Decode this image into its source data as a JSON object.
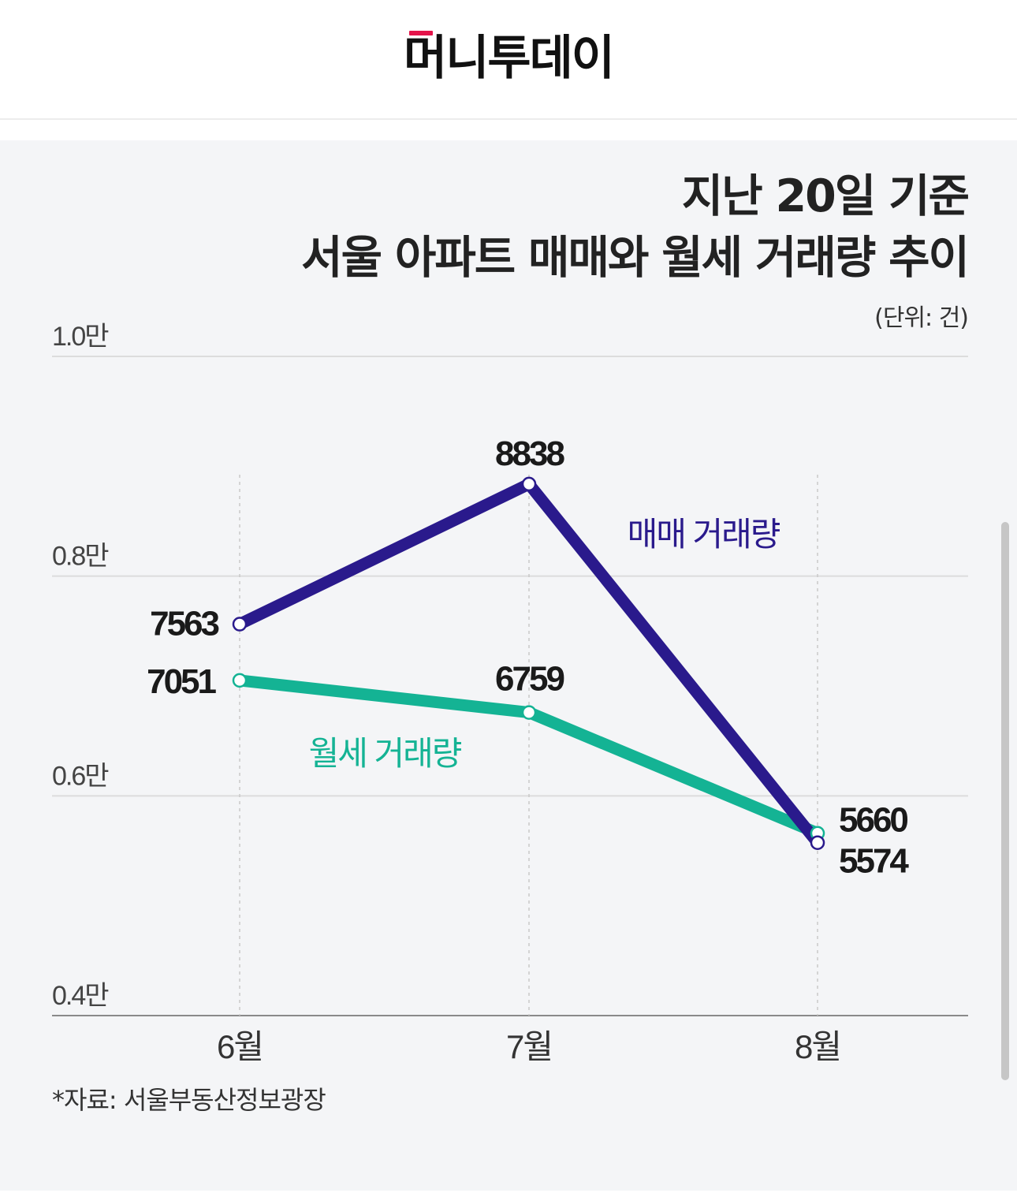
{
  "header": {
    "logo_text": "머니투데이",
    "logo_accent_color": "#e4144a"
  },
  "chart": {
    "title_line1": "지난 20일 기준",
    "title_line2": "서울 아파트 매매와 월세 거래량 추이",
    "unit": "(단위: 건)",
    "source": "*자료: 서울부동산정보광장"
  },
  "chart_data": {
    "type": "line",
    "title": "지난 20일 기준 서울 아파트 매매와 월세 거래량 추이",
    "categories": [
      "6월",
      "7월",
      "8월"
    ],
    "series": [
      {
        "name": "매매 거래량",
        "values": [
          7563,
          8838,
          5574
        ],
        "color": "#2a1a8c"
      },
      {
        "name": "월세 거래량",
        "values": [
          7051,
          6759,
          5660
        ],
        "color": "#14b394"
      }
    ],
    "yticks": [
      4000,
      6000,
      8000,
      10000
    ],
    "ytick_labels": [
      "0.4만",
      "0.6만",
      "0.8만",
      "1.0만"
    ],
    "ylim": [
      4000,
      10000
    ],
    "grid": true,
    "xlabel": "",
    "ylabel": ""
  }
}
